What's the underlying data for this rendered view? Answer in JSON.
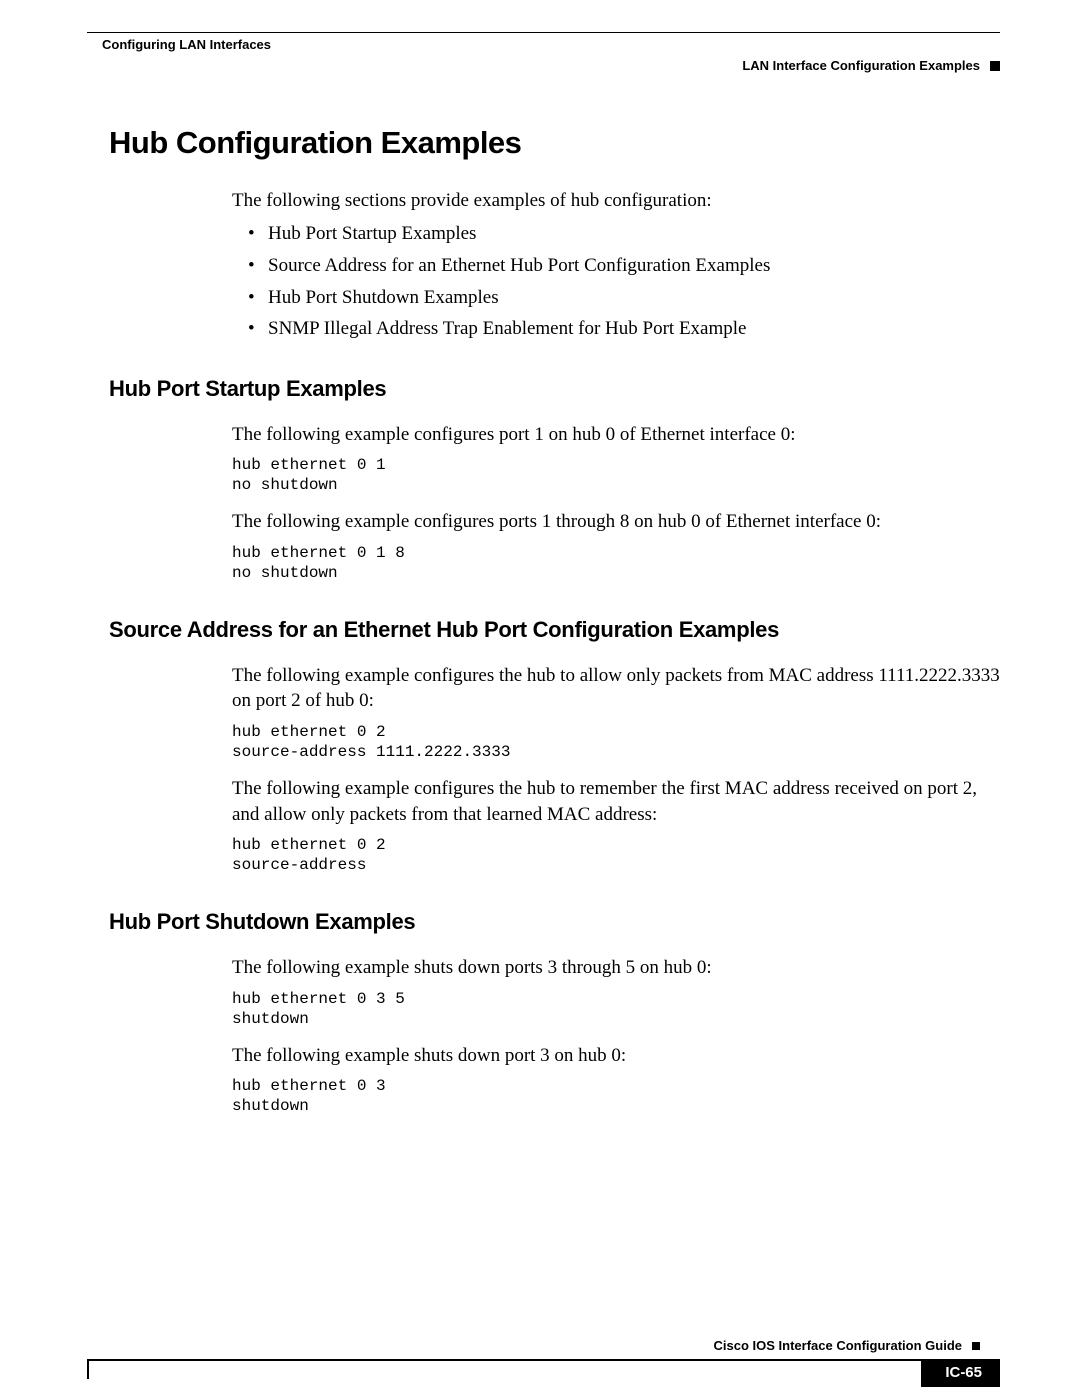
{
  "header": {
    "left": "Configuring LAN Interfaces",
    "right": "LAN Interface Configuration Examples"
  },
  "h1": "Hub Configuration Examples",
  "intro": "The following sections provide examples of hub configuration:",
  "bullets": [
    "Hub Port Startup Examples",
    "Source Address for an Ethernet Hub Port Configuration Examples",
    "Hub Port Shutdown Examples",
    "SNMP Illegal Address Trap Enablement for Hub Port Example"
  ],
  "sections": {
    "startup": {
      "title": "Hub Port Startup Examples",
      "p1": "The following example configures port 1 on hub 0 of Ethernet interface 0:",
      "code1": "hub ethernet 0 1\nno shutdown",
      "p2": "The following example configures ports 1 through 8 on hub 0 of Ethernet interface 0:",
      "code2": "hub ethernet 0 1 8\nno shutdown"
    },
    "source": {
      "title": "Source Address for an Ethernet Hub Port Configuration Examples",
      "p1": "The following example configures the hub to allow only packets from MAC address 1111.2222.3333 on port 2 of hub 0:",
      "code1": "hub ethernet 0 2\nsource-address 1111.2222.3333",
      "p2": "The following example configures the hub to remember the first MAC address received on port 2, and allow only packets from that learned MAC address:",
      "code2": "hub ethernet 0 2\nsource-address"
    },
    "shutdown": {
      "title": "Hub Port Shutdown Examples",
      "p1": "The following example shuts down ports 3 through 5 on hub 0:",
      "code1": "hub ethernet 0 3 5\nshutdown",
      "p2": "The following example shuts down port 3 on hub 0:",
      "code2": "hub ethernet 0 3\nshutdown"
    }
  },
  "footer": {
    "guide": "Cisco IOS Interface Configuration Guide",
    "page": "IC-65"
  },
  "colors": {
    "text": "#000000",
    "background": "#ffffff"
  },
  "typography": {
    "body_font": "Times New Roman",
    "heading_font": "Arial",
    "code_font": "Courier New",
    "h1_size_pt": 23,
    "h2_size_pt": 16,
    "body_size_pt": 14,
    "code_size_pt": 12
  }
}
